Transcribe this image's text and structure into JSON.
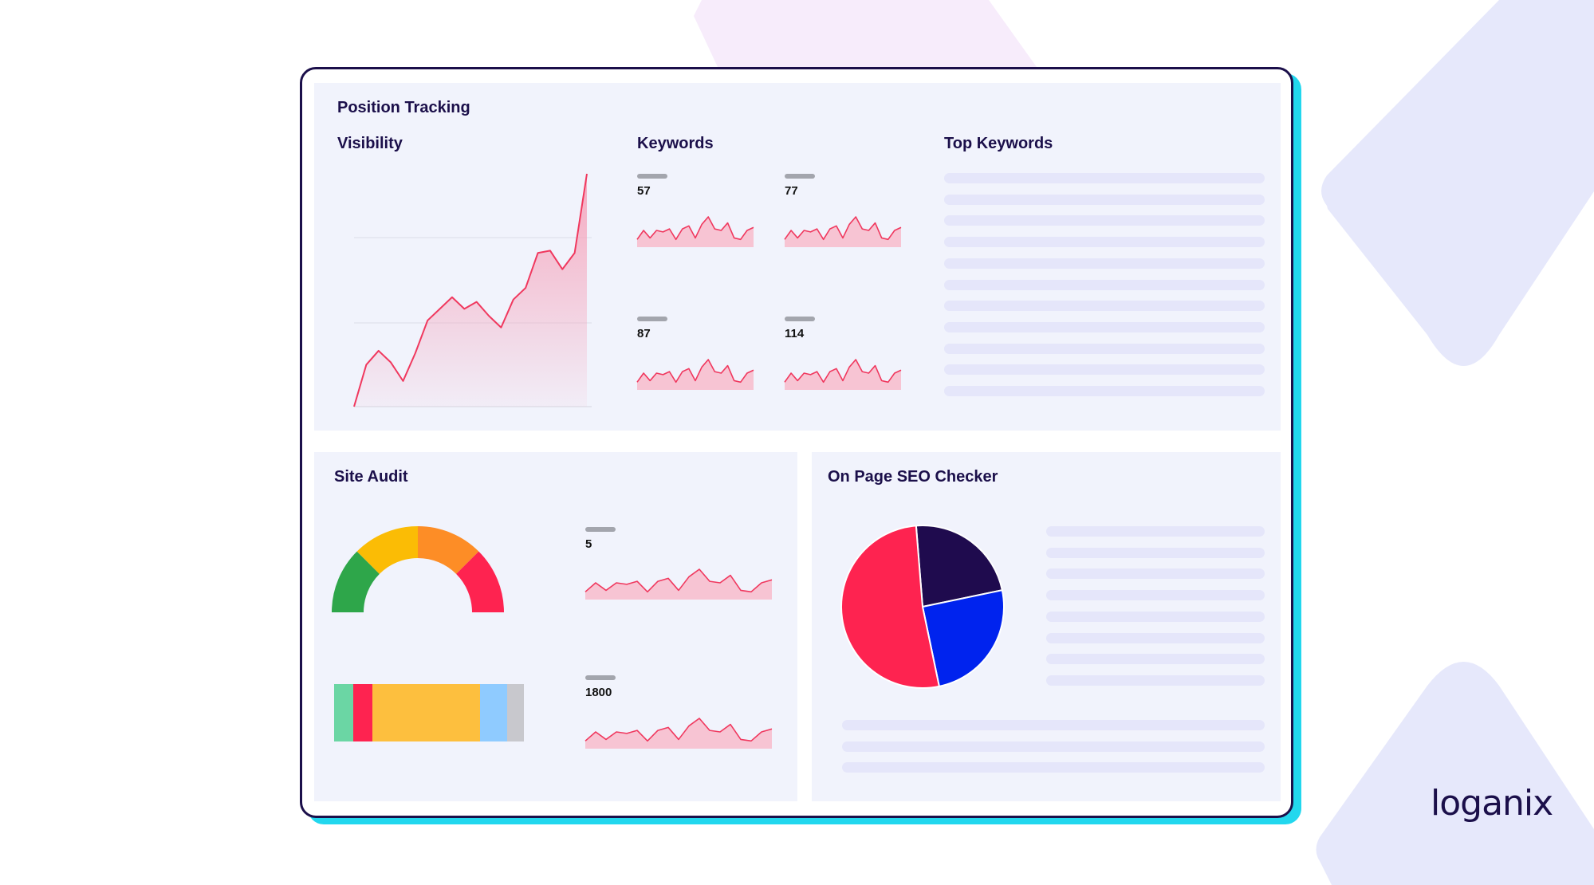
{
  "brand": {
    "logo_text": "loganix"
  },
  "position_tracking": {
    "title": "Position Tracking",
    "visibility": {
      "title": "Visibility",
      "values": [
        0,
        18,
        24,
        19,
        11,
        23,
        37,
        42,
        47,
        42,
        45,
        39,
        34,
        46,
        51,
        66,
        67,
        59,
        66,
        100
      ]
    },
    "keywords": {
      "title": "Keywords",
      "items": [
        {
          "value": "57"
        },
        {
          "value": "77"
        },
        {
          "value": "87"
        },
        {
          "value": "114"
        }
      ],
      "sparkline": [
        3,
        9,
        4,
        9,
        8,
        10,
        3,
        10,
        12,
        4,
        13,
        18,
        10,
        9,
        14,
        4,
        3,
        9,
        11
      ]
    },
    "top_keywords": {
      "title": "Top Keywords",
      "row_count": 11
    }
  },
  "site_audit": {
    "title": "Site Audit",
    "gauge_colors": [
      "#2ea64a",
      "#fbbc05",
      "#fd8d26",
      "#fe2350"
    ],
    "bar_segments": [
      {
        "fraction": 0.1,
        "color": "#6bd6a4"
      },
      {
        "fraction": 0.1,
        "color": "#fe2350"
      },
      {
        "fraction": 0.57,
        "color": "#fdbf3e"
      },
      {
        "fraction": 0.14,
        "color": "#8fcbff"
      },
      {
        "fraction": 0.09,
        "color": "#c8c8cd"
      }
    ],
    "items": [
      {
        "value": "5"
      },
      {
        "value": "1800"
      }
    ],
    "sparkline": [
      3,
      9,
      4,
      9,
      8,
      10,
      3,
      10,
      12,
      4,
      13,
      18,
      10,
      9,
      14,
      4,
      3,
      9,
      11
    ]
  },
  "on_page_seo": {
    "title": "On Page SEO Checker",
    "pie": [
      {
        "fraction": 0.23,
        "color": "#1f0b4e"
      },
      {
        "fraction": 0.25,
        "color": "#0023ee"
      },
      {
        "fraction": 0.52,
        "color": "#fe2350"
      }
    ],
    "side_rows": 8,
    "bottom_rows": 3
  },
  "colors": {
    "line": "#f0385e",
    "fill_top": "#f5a6bd",
    "accent": "#22d7ee",
    "navy": "#1b0f4a"
  }
}
